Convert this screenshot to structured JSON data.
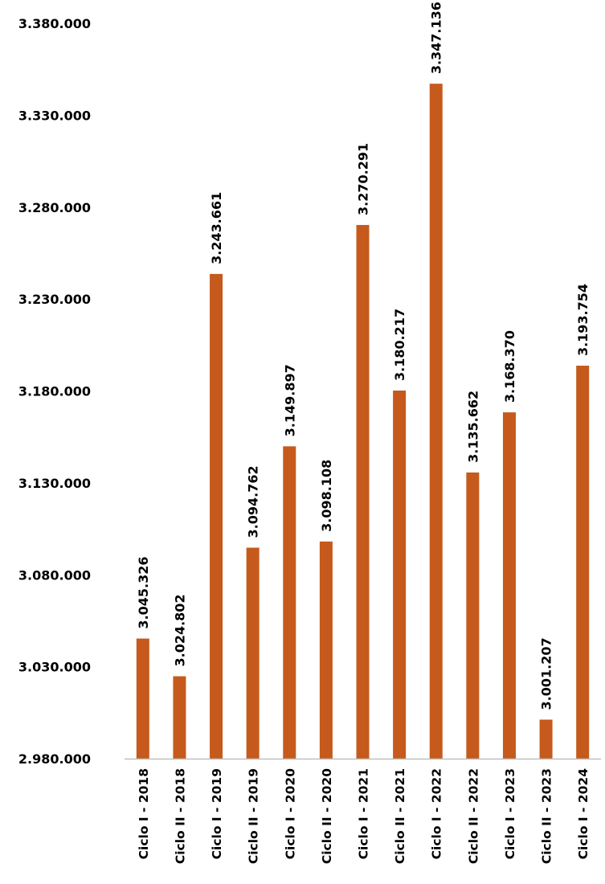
{
  "chart_data": {
    "type": "bar",
    "categories": [
      "Ciclo I - 2018",
      "Ciclo II - 2018",
      "Ciclo I - 2019",
      "Ciclo II - 2019",
      "Ciclo I - 2020",
      "Ciclo II - 2020",
      "Ciclo I - 2021",
      "Ciclo II - 2021",
      "Ciclo I - 2022",
      "Ciclo II - 2022",
      "Ciclo I - 2023",
      "Ciclo II - 2023",
      "Ciclo I - 2024"
    ],
    "values": [
      3045326,
      3024802,
      3243661,
      3094762,
      3149897,
      3098108,
      3270291,
      3180217,
      3347136,
      3135662,
      3168370,
      3001207,
      3193754
    ],
    "value_labels": [
      "3.045.326",
      "3.024.802",
      "3.243.661",
      "3.094.762",
      "3.149.897",
      "3.098.108",
      "3.270.291",
      "3.180.217",
      "3.347.136",
      "3.135.662",
      "3.168.370",
      "3.001.207",
      "3.193.754"
    ],
    "y_ticks": [
      2980000,
      3030000,
      3080000,
      3130000,
      3180000,
      3230000,
      3280000,
      3330000,
      3380000
    ],
    "y_tick_labels": [
      "2.980.000",
      "3.030.000",
      "3.080.000",
      "3.130.000",
      "3.180.000",
      "3.230.000",
      "3.280.000",
      "3.330.000",
      "3.380.000"
    ],
    "ylim": [
      2980000,
      3380000
    ],
    "title": "",
    "xlabel": "",
    "ylabel": "",
    "grid": false,
    "legend": "none",
    "bar_color": "#C55A1C",
    "axis_color": "#BFBFBF"
  }
}
